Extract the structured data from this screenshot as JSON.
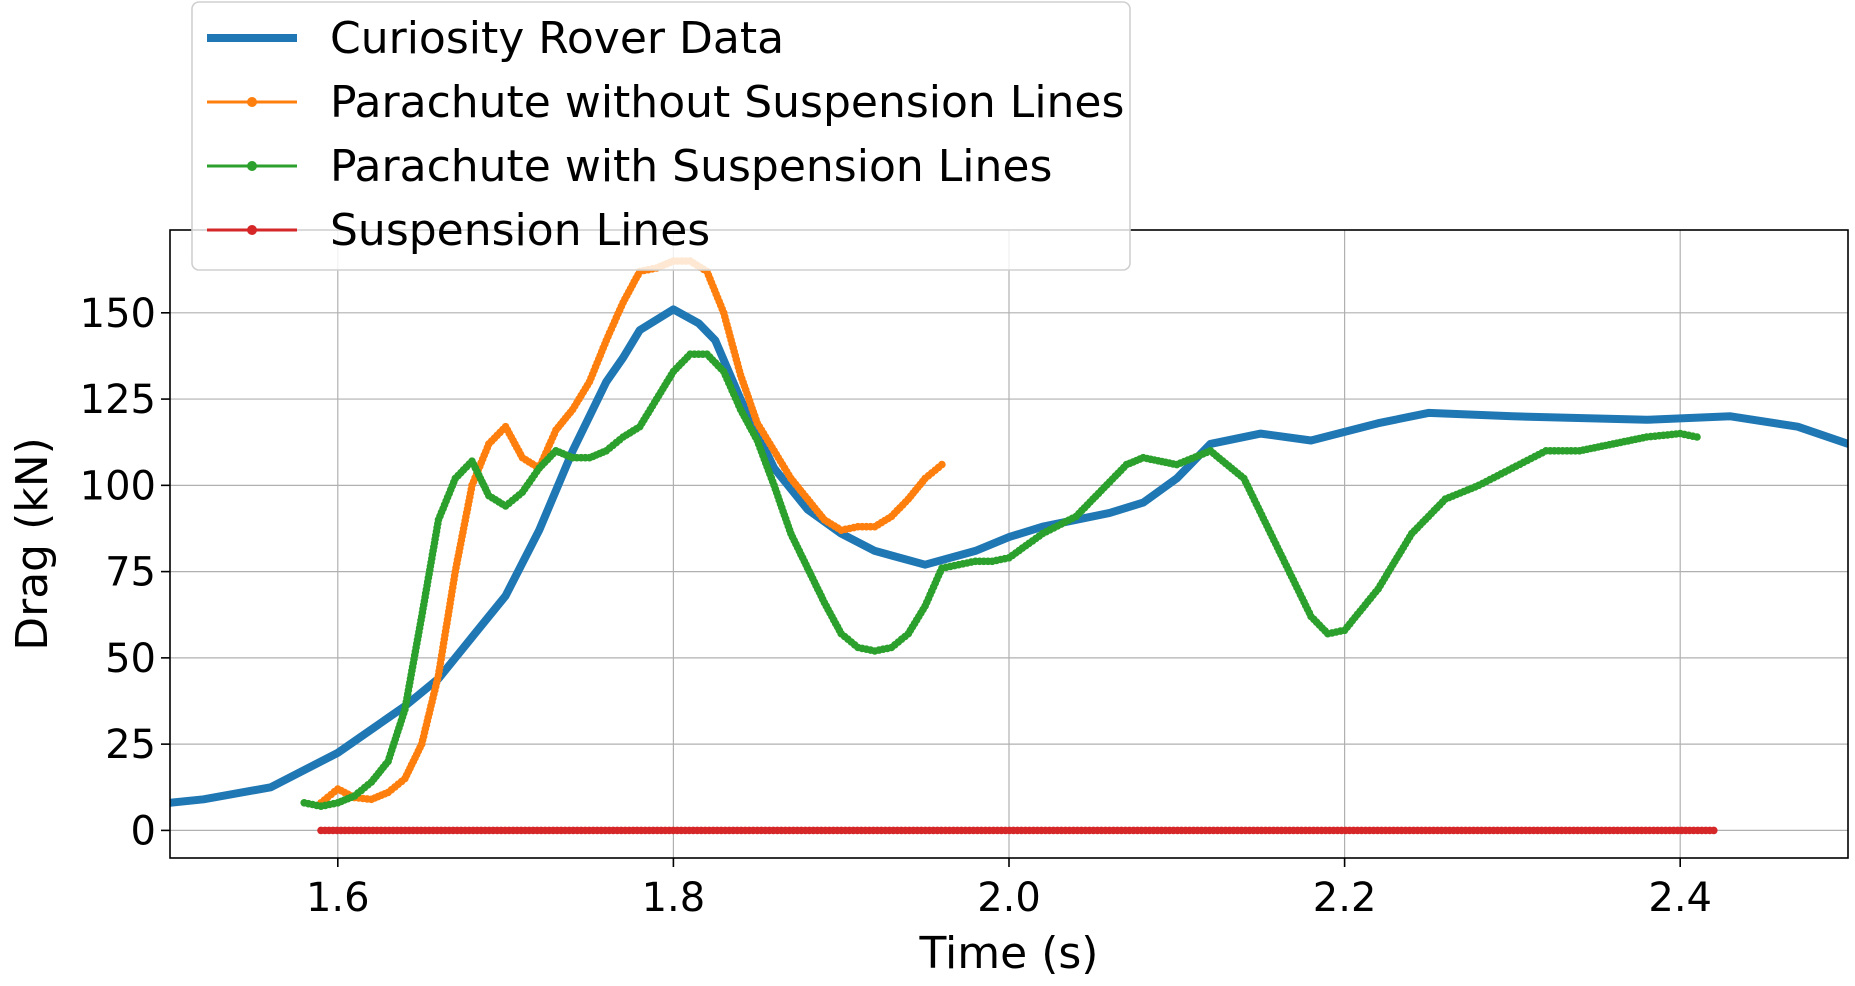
{
  "chart_data": {
    "type": "line",
    "title": "",
    "xlabel": "Time (s)",
    "ylabel": "Drag (kN)",
    "xlim": [
      1.5,
      2.5
    ],
    "ylim": [
      -8,
      174
    ],
    "xticks": [
      1.6,
      1.8,
      2.0,
      2.2,
      2.4
    ],
    "xtick_labels": [
      "1.6",
      "1.8",
      "2.0",
      "2.2",
      "2.4"
    ],
    "yticks": [
      0,
      25,
      50,
      75,
      100,
      125,
      150
    ],
    "ytick_labels": [
      "0",
      "25",
      "50",
      "75",
      "100",
      "125",
      "150"
    ],
    "grid": true,
    "legend_position": "top-left, above plot",
    "series": [
      {
        "name": "Curiosity Rover Data",
        "color": "#1f77b4",
        "style": "thick-line",
        "x": [
          1.5,
          1.52,
          1.56,
          1.6,
          1.64,
          1.66,
          1.68,
          1.7,
          1.72,
          1.74,
          1.76,
          1.77,
          1.78,
          1.8,
          1.815,
          1.825,
          1.84,
          1.86,
          1.88,
          1.9,
          1.92,
          1.95,
          1.98,
          2.0,
          2.02,
          2.06,
          2.08,
          2.1,
          2.12,
          2.15,
          2.18,
          2.22,
          2.25,
          2.3,
          2.38,
          2.43,
          2.47,
          2.5
        ],
        "y": [
          8,
          9,
          12.5,
          22.5,
          36,
          44,
          56,
          68,
          87,
          110,
          130,
          137,
          145,
          151,
          147,
          142,
          125,
          105,
          93,
          86,
          81,
          77,
          81,
          85,
          88,
          92,
          95,
          102,
          112,
          115,
          113,
          118,
          121,
          120,
          119,
          120,
          117,
          112
        ]
      },
      {
        "name": "Parachute without Suspension Lines",
        "color": "#ff7f0e",
        "style": "line-dot",
        "x": [
          1.59,
          1.6,
          1.61,
          1.62,
          1.63,
          1.64,
          1.65,
          1.66,
          1.67,
          1.68,
          1.69,
          1.7,
          1.71,
          1.72,
          1.73,
          1.74,
          1.75,
          1.76,
          1.77,
          1.78,
          1.79,
          1.8,
          1.81,
          1.82,
          1.83,
          1.84,
          1.85,
          1.86,
          1.87,
          1.88,
          1.89,
          1.9,
          1.91,
          1.92,
          1.93,
          1.94,
          1.95,
          1.96
        ],
        "y": [
          8,
          12,
          9.5,
          9,
          11,
          15,
          25,
          45,
          75,
          100,
          112,
          117,
          108,
          105,
          116,
          122,
          130,
          142,
          153,
          162,
          163,
          165,
          165,
          162,
          150,
          132,
          118,
          110,
          102,
          96,
          90,
          87,
          88,
          88,
          91,
          96,
          102,
          106
        ]
      },
      {
        "name": "Parachute with Suspension Lines",
        "color": "#2ca02c",
        "style": "line-dot",
        "x": [
          1.58,
          1.59,
          1.6,
          1.61,
          1.62,
          1.63,
          1.64,
          1.65,
          1.66,
          1.67,
          1.68,
          1.69,
          1.7,
          1.71,
          1.72,
          1.73,
          1.74,
          1.75,
          1.76,
          1.77,
          1.78,
          1.79,
          1.8,
          1.81,
          1.82,
          1.83,
          1.84,
          1.85,
          1.86,
          1.87,
          1.88,
          1.89,
          1.9,
          1.91,
          1.92,
          1.93,
          1.94,
          1.95,
          1.96,
          1.97,
          1.98,
          1.99,
          2.0,
          2.02,
          2.04,
          2.06,
          2.07,
          2.08,
          2.1,
          2.12,
          2.14,
          2.16,
          2.18,
          2.19,
          2.2,
          2.22,
          2.24,
          2.26,
          2.28,
          2.3,
          2.32,
          2.34,
          2.36,
          2.38,
          2.4,
          2.41
        ],
        "y": [
          8,
          7,
          8,
          10,
          14,
          20,
          35,
          62,
          90,
          102,
          107,
          97,
          94,
          98,
          105,
          110,
          108,
          108,
          110,
          114,
          117,
          125,
          133,
          138,
          138,
          133,
          122,
          113,
          100,
          86,
          76,
          66,
          57,
          53,
          52,
          53,
          57,
          65,
          76,
          77,
          78,
          78,
          79,
          86,
          91,
          101,
          106,
          108,
          106,
          110,
          102,
          82,
          62,
          57,
          58,
          70,
          86,
          96,
          100,
          105,
          110,
          110,
          112,
          114,
          115,
          114
        ]
      },
      {
        "name": "Suspension Lines",
        "color": "#d62728",
        "style": "line-dot",
        "x": [
          1.59,
          2.42
        ],
        "y": [
          0,
          0
        ]
      }
    ]
  }
}
